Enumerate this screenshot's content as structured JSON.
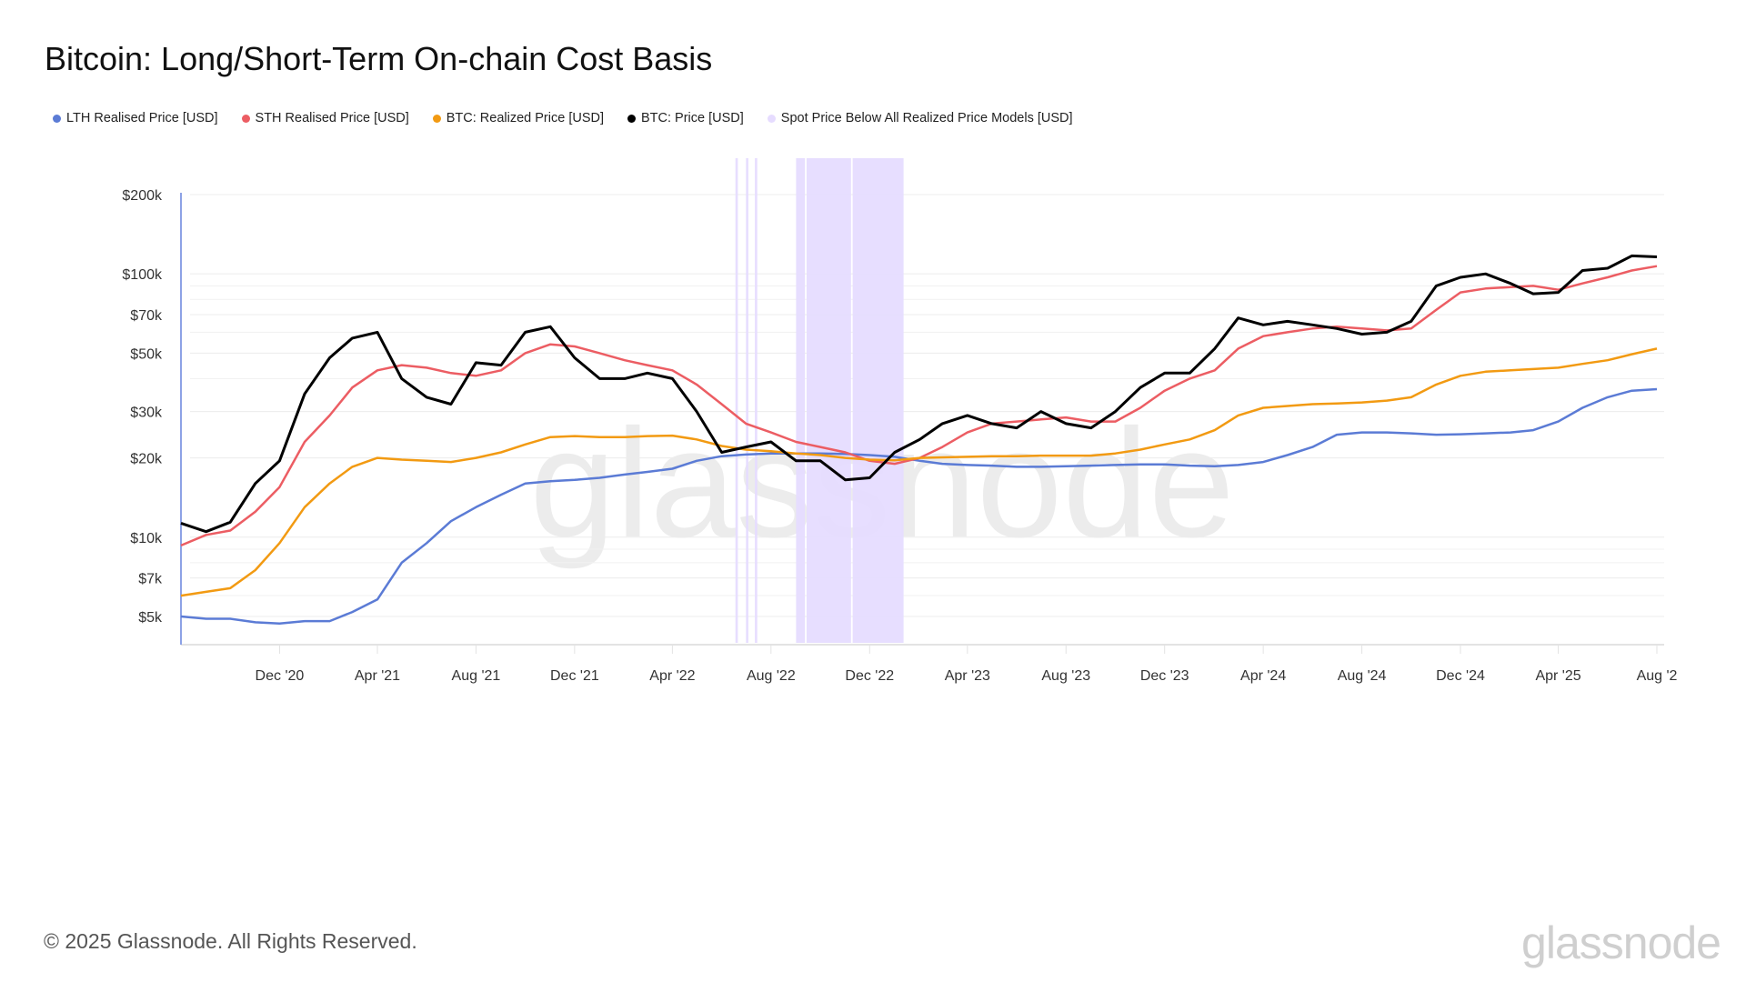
{
  "title": "Bitcoin: Long/Short-Term On-chain Cost Basis",
  "footer": "© 2025 Glassnode. All Rights Reserved.",
  "logo": "glassnode",
  "watermark": "glassnode",
  "chart_data": {
    "type": "line",
    "title": "Bitcoin: Long/Short-Term On-chain Cost Basis",
    "y_scale": "log",
    "ylim": [
      3970,
      200000
    ],
    "xlim": [
      "2020-08-01",
      "2025-08-10"
    ],
    "grid": true,
    "legend_position": "top-left",
    "y_ticks": [
      {
        "value": 200000,
        "label": "$200k"
      },
      {
        "value": 100000,
        "label": "$100k"
      },
      {
        "value": 70000,
        "label": "$70k"
      },
      {
        "value": 50000,
        "label": "$50k"
      },
      {
        "value": 30000,
        "label": "$30k"
      },
      {
        "value": 20000,
        "label": "$20k"
      },
      {
        "value": 10000,
        "label": "$10k"
      },
      {
        "value": 7000,
        "label": "$7k"
      },
      {
        "value": 5000,
        "label": "$5k"
      }
    ],
    "minor_grid": [
      90000,
      80000,
      60000,
      40000,
      9000,
      8000,
      6000
    ],
    "x_ticks": [
      {
        "date": "2020-12-01",
        "label": "Dec '20"
      },
      {
        "date": "2021-04-01",
        "label": "Apr '21"
      },
      {
        "date": "2021-08-01",
        "label": "Aug '21"
      },
      {
        "date": "2021-12-01",
        "label": "Dec '21"
      },
      {
        "date": "2022-04-01",
        "label": "Apr '22"
      },
      {
        "date": "2022-08-01",
        "label": "Aug '22"
      },
      {
        "date": "2022-12-01",
        "label": "Dec '22"
      },
      {
        "date": "2023-04-01",
        "label": "Apr '23"
      },
      {
        "date": "2023-08-01",
        "label": "Aug '23"
      },
      {
        "date": "2023-12-01",
        "label": "Dec '23"
      },
      {
        "date": "2024-04-01",
        "label": "Apr '24"
      },
      {
        "date": "2024-08-01",
        "label": "Aug '24"
      },
      {
        "date": "2024-12-01",
        "label": "Dec '24"
      },
      {
        "date": "2025-04-01",
        "label": "Apr '25"
      },
      {
        "date": "2025-08-01",
        "label": "Aug '2"
      }
    ],
    "x": [
      "2020-08",
      "2020-09",
      "2020-10",
      "2020-11",
      "2020-12",
      "2021-01",
      "2021-02",
      "2021-03",
      "2021-04",
      "2021-05",
      "2021-06",
      "2021-07",
      "2021-08",
      "2021-09",
      "2021-10",
      "2021-11",
      "2021-12",
      "2022-01",
      "2022-02",
      "2022-03",
      "2022-04",
      "2022-05",
      "2022-06",
      "2022-07",
      "2022-08",
      "2022-09",
      "2022-10",
      "2022-11",
      "2022-12",
      "2023-01",
      "2023-02",
      "2023-03",
      "2023-04",
      "2023-05",
      "2023-06",
      "2023-07",
      "2023-08",
      "2023-09",
      "2023-10",
      "2023-11",
      "2023-12",
      "2024-01",
      "2024-02",
      "2024-03",
      "2024-04",
      "2024-05",
      "2024-06",
      "2024-07",
      "2024-08",
      "2024-09",
      "2024-10",
      "2024-11",
      "2024-12",
      "2025-01",
      "2025-02",
      "2025-03",
      "2025-04",
      "2025-05",
      "2025-06",
      "2025-07",
      "2025-08"
    ],
    "series": [
      {
        "name": "LTH Realised Price [USD]",
        "color": "#5b7bd5",
        "values": [
          5000,
          4900,
          4900,
          4750,
          4700,
          4800,
          4800,
          5200,
          5800,
          8000,
          9500,
          11500,
          13000,
          14500,
          16000,
          16300,
          16500,
          16800,
          17300,
          17700,
          18200,
          19500,
          20300,
          20600,
          20800,
          20800,
          20800,
          20700,
          20500,
          20200,
          19500,
          19000,
          18800,
          18700,
          18500,
          18500,
          18600,
          18700,
          18800,
          18900,
          18900,
          18700,
          18600,
          18800,
          19300,
          20500,
          22000,
          24500,
          25000,
          25000,
          24800,
          24500,
          24600,
          24800,
          25000,
          25500,
          27500,
          31000,
          34000,
          36000,
          36500
        ]
      },
      {
        "name": "STH Realised Price [USD]",
        "color": "#ec5d63",
        "values": [
          9300,
          10200,
          10600,
          12500,
          15500,
          23000,
          29000,
          37000,
          43000,
          45000,
          44000,
          42000,
          41000,
          43000,
          50000,
          54000,
          53000,
          50000,
          47000,
          45000,
          43000,
          38000,
          32000,
          27000,
          25000,
          23000,
          22000,
          21000,
          19500,
          19000,
          20000,
          22000,
          25000,
          27000,
          27500,
          28000,
          28500,
          27500,
          27500,
          31000,
          36000,
          40000,
          43000,
          52000,
          58000,
          60000,
          62000,
          63000,
          62000,
          61000,
          62000,
          73000,
          85000,
          88000,
          89000,
          90000,
          87000,
          92000,
          97000,
          103000,
          107000
        ]
      },
      {
        "name": "BTC: Realized Price [USD]",
        "color": "#f29a12",
        "values": [
          6000,
          6200,
          6400,
          7500,
          9500,
          13000,
          16000,
          18500,
          20000,
          19700,
          19500,
          19300,
          20000,
          21000,
          22500,
          24000,
          24200,
          24000,
          24000,
          24200,
          24300,
          23500,
          22200,
          21500,
          21200,
          20800,
          20500,
          20000,
          19700,
          19600,
          20000,
          20100,
          20200,
          20300,
          20300,
          20400,
          20400,
          20400,
          20800,
          21500,
          22500,
          23500,
          25500,
          29000,
          31000,
          31500,
          32000,
          32200,
          32500,
          33000,
          34000,
          38000,
          41000,
          42500,
          43000,
          43500,
          44000,
          45500,
          47000,
          49500,
          52000
        ]
      },
      {
        "name": "BTC: Price [USD]",
        "color": "#000000",
        "values": [
          11300,
          10500,
          11400,
          16000,
          19500,
          35000,
          48000,
          57000,
          60000,
          40000,
          34000,
          32000,
          46000,
          45000,
          60000,
          63000,
          48000,
          40000,
          40000,
          42000,
          40000,
          30000,
          21000,
          22000,
          23000,
          19500,
          19500,
          16500,
          16800,
          21000,
          23500,
          27000,
          29000,
          27000,
          26000,
          30000,
          27000,
          26000,
          30000,
          37000,
          42000,
          42000,
          52000,
          68000,
          64000,
          66000,
          64000,
          62000,
          59000,
          60000,
          66000,
          90000,
          97000,
          100000,
          92000,
          84000,
          85000,
          103000,
          105000,
          117000,
          116000
        ]
      }
    ],
    "shaded": {
      "name": "Spot Price Below All Realized Price Models [USD]",
      "color": "#e6dcff",
      "ranges": [
        [
          "2022-06-18",
          "2022-06-21"
        ],
        [
          "2022-07-01",
          "2022-07-04"
        ],
        [
          "2022-07-12",
          "2022-07-15"
        ],
        [
          "2022-09-01",
          "2022-09-12"
        ],
        [
          "2022-09-14",
          "2022-11-08"
        ],
        [
          "2022-11-10",
          "2023-01-12"
        ]
      ]
    }
  }
}
